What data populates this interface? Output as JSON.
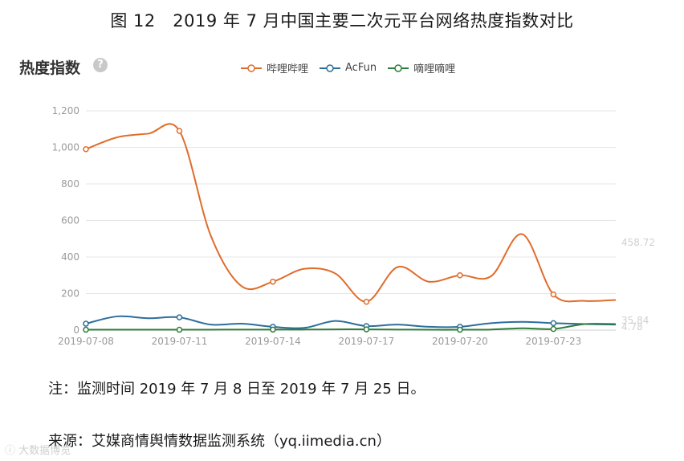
{
  "figure_title": "图 12　2019 年 7 月中国主要二次元平台网络热度指数对比",
  "panel": {
    "title": "热度指数",
    "help_icon": "question-mark-icon"
  },
  "note": "注：监测时间 2019 年 7 月 8 日至 2019 年 7 月 25 日。",
  "source": "来源：艾媒商情舆情数据监测系统（yq.iimedia.cn）",
  "watermark": "ⓘ 大数据博览",
  "chart_data": {
    "type": "line",
    "title": "热度指数",
    "xlabel": "",
    "ylabel": "",
    "ylim": [
      0,
      1200
    ],
    "yticks": [
      "0",
      "200",
      "400",
      "600",
      "800",
      "1,000",
      "1,200"
    ],
    "xtick_labels": [
      "2019-07-08",
      "2019-07-11",
      "2019-07-14",
      "2019-07-17",
      "2019-07-20",
      "2019-07-23"
    ],
    "x": [
      "2019-07-08",
      "2019-07-09",
      "2019-07-10",
      "2019-07-11",
      "2019-07-12",
      "2019-07-13",
      "2019-07-14",
      "2019-07-15",
      "2019-07-16",
      "2019-07-17",
      "2019-07-18",
      "2019-07-19",
      "2019-07-20",
      "2019-07-21",
      "2019-07-22",
      "2019-07-23",
      "2019-07-24",
      "2019-07-25"
    ],
    "grid": true,
    "legend_position": "top",
    "series": [
      {
        "name": "哔哩哔哩",
        "color": "#e06c2b",
        "values": [
          990,
          1055,
          1075,
          1090,
          520,
          240,
          265,
          335,
          310,
          155,
          345,
          265,
          300,
          295,
          525,
          195,
          160,
          165
        ]
      },
      {
        "name": "AcFun",
        "color": "#2d6e9c",
        "values": [
          35,
          75,
          65,
          70,
          30,
          35,
          18,
          12,
          50,
          22,
          30,
          18,
          18,
          38,
          45,
          38,
          33,
          30
        ]
      },
      {
        "name": "嘀哩嘀哩",
        "color": "#2e7d3a",
        "values": [
          2,
          2,
          2,
          2,
          2,
          3,
          3,
          3,
          4,
          4,
          3,
          2,
          2,
          3,
          10,
          6,
          33,
          33
        ]
      }
    ],
    "marker_indices": [
      0,
      3,
      6,
      9,
      12,
      15
    ],
    "end_labels": [
      "458.72",
      "35.84",
      "4.78"
    ]
  }
}
